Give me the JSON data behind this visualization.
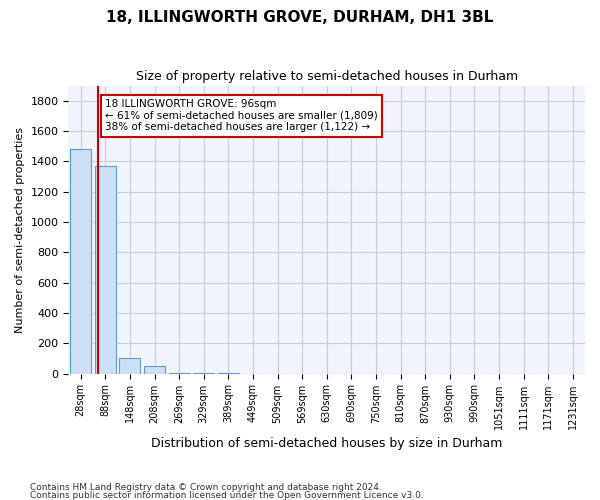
{
  "title": "18, ILLINGWORTH GROVE, DURHAM, DH1 3BL",
  "subtitle": "Size of property relative to semi-detached houses in Durham",
  "xlabel": "Distribution of semi-detached houses by size in Durham",
  "ylabel": "Number of semi-detached properties",
  "footnote1": "Contains HM Land Registry data © Crown copyright and database right 2024.",
  "footnote2": "Contains public sector information licensed under the Open Government Licence v3.0.",
  "bar_labels": [
    "28sqm",
    "88sqm",
    "148sqm",
    "208sqm",
    "269sqm",
    "329sqm",
    "389sqm",
    "449sqm",
    "509sqm",
    "569sqm",
    "630sqm",
    "690sqm",
    "750sqm",
    "810sqm",
    "870sqm",
    "930sqm",
    "990sqm",
    "1051sqm",
    "1111sqm",
    "1171sqm",
    "1231sqm"
  ],
  "bar_values": [
    1480,
    1370,
    105,
    47,
    2,
    1,
    1,
    0,
    0,
    0,
    0,
    0,
    0,
    0,
    0,
    0,
    0,
    0,
    0,
    0,
    0
  ],
  "bar_color": "#cce0f5",
  "bar_edge_color": "#5b9bd5",
  "property_size": 96,
  "property_label": "18 ILLINGWORTH GROVE: 96sqm",
  "pct_smaller": 61,
  "n_smaller": 1809,
  "pct_larger": 38,
  "n_larger": 1122,
  "annotation_box_color": "#ffffff",
  "annotation_box_edge_color": "#cc0000",
  "red_line_color": "#cc0000",
  "ylim": [
    0,
    1900
  ],
  "yticks": [
    0,
    200,
    400,
    600,
    800,
    1000,
    1200,
    1400,
    1600,
    1800
  ],
  "grid_color": "#cccccc",
  "background_color": "#ffffff",
  "plot_bg_color": "#f0f4fc"
}
